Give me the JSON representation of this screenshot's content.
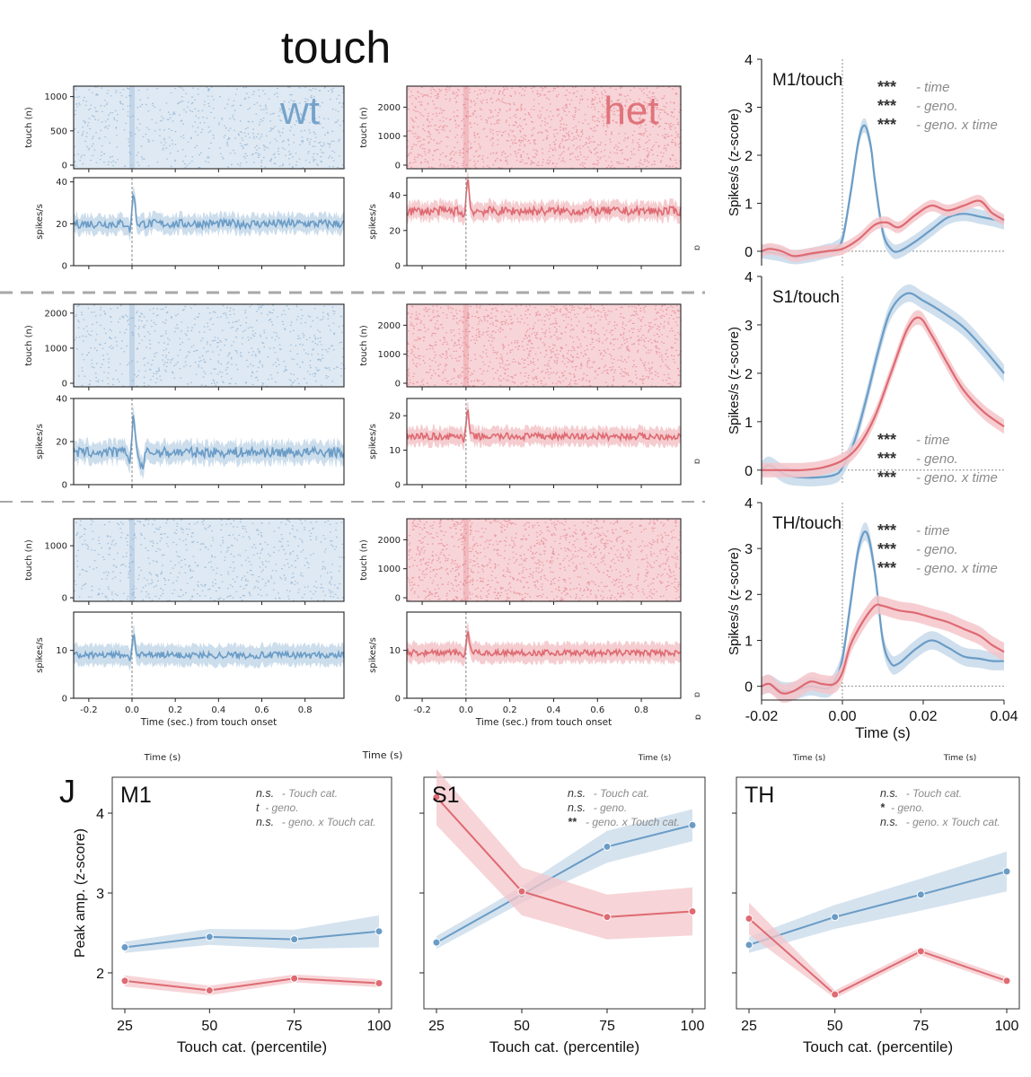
{
  "figure": {
    "title": "touch",
    "panel_letter": "J",
    "wt_label": "wt",
    "het_label": "het",
    "stray_time_labels": [
      "Time (s)",
      "Time (s)",
      "Time (s)",
      "Time (s)",
      "Time (s)"
    ],
    "stray_marks": [
      "ɒ",
      "ɒ",
      "ɒ",
      "ɒ"
    ]
  },
  "colors": {
    "wt": "#6a9cc6",
    "het": "#de6a72",
    "wt_band": "#c7d9ea",
    "het_band": "#f4c6ca",
    "wt_raster_bg": "#dfe9f3",
    "het_raster_bg": "#f7d4d8",
    "stats_gray": "#8a8a8a",
    "dash": "#a8a8a8"
  },
  "chart_data": [
    {
      "id": "raster_psth_grid",
      "type": "line",
      "title": "touch",
      "xlabel": "Time (sec.) from touch onset",
      "xticks": [
        "-0.2",
        "0.0",
        "0.2",
        "0.4",
        "0.6",
        "0.8"
      ],
      "xlim": [
        -0.27,
        0.98
      ],
      "rows": [
        {
          "region": "M1",
          "raster": {
            "ylabel": "touch (n)",
            "wt_yticks": [
              "0",
              "500",
              "1000"
            ],
            "wt_ylim": [
              0,
              1100
            ],
            "het_yticks": [
              "0",
              "1000",
              "2000"
            ],
            "het_ylim": [
              0,
              2600
            ]
          },
          "psth": {
            "ylabel": "spikes/s",
            "wt_yticks": [
              "0",
              "20",
              "40"
            ],
            "wt_ylim": [
              0,
              42
            ],
            "het_yticks": [
              "0",
              "20",
              "40"
            ],
            "het_ylim": [
              0,
              50
            ],
            "wt_baseline": 20,
            "wt_peak": 35,
            "het_baseline": 31,
            "het_peak": 49
          }
        },
        {
          "region": "S1",
          "raster": {
            "ylabel": "touch (n)",
            "wt_yticks": [
              "0",
              "1000",
              "2000"
            ],
            "wt_ylim": [
              0,
              2150
            ],
            "het_yticks": [
              "0",
              "1000",
              "2000"
            ],
            "het_ylim": [
              0,
              2600
            ]
          },
          "psth": {
            "ylabel": "spikes/s",
            "wt_yticks": [
              "0",
              "20",
              "40"
            ],
            "wt_ylim": [
              0,
              40
            ],
            "het_yticks": [
              "0",
              "10",
              "20"
            ],
            "het_ylim": [
              0,
              25
            ],
            "wt_baseline": 15,
            "wt_peak": 32,
            "het_baseline": 14,
            "het_peak": 21
          }
        },
        {
          "region": "TH",
          "raster": {
            "ylabel": "touch (n)",
            "wt_yticks": [
              "0",
              "1000"
            ],
            "wt_ylim": [
              0,
              1450
            ],
            "het_yticks": [
              "0",
              "1000",
              "2000"
            ],
            "het_ylim": [
              0,
              2600
            ]
          },
          "psth": {
            "ylabel": "spikes/s",
            "wt_yticks": [
              "0",
              "10"
            ],
            "wt_ylim": [
              0,
              18
            ],
            "het_yticks": [
              "0",
              "10"
            ],
            "het_ylim": [
              0,
              18
            ],
            "wt_baseline": 9,
            "wt_peak": 14,
            "het_baseline": 9.5,
            "het_peak": 14
          }
        }
      ]
    },
    {
      "id": "zscore_time_panels",
      "type": "line",
      "xlabel": "Time (s)",
      "ylabel": "Spikes/s (z-score)",
      "xlim": [
        -0.02,
        0.04
      ],
      "xticks": [
        "-0.02",
        "0.00",
        "0.02",
        "0.04"
      ],
      "ylim": [
        -0.3,
        4
      ],
      "yticks": [
        "0",
        "1",
        "2",
        "3",
        "4"
      ],
      "panels": [
        {
          "title": "M1/touch",
          "stats": [
            {
              "stars": "***",
              "label": "- time"
            },
            {
              "stars": "***",
              "label": "- geno."
            },
            {
              "stars": "***",
              "label": "- geno. x time"
            }
          ],
          "stats_position": "top-right",
          "series": [
            {
              "name": "wt",
              "x": [
                -0.02,
                -0.016,
                -0.012,
                -0.008,
                -0.004,
                -0.002,
                0.0,
                0.002,
                0.004,
                0.0055,
                0.007,
                0.008,
                0.01,
                0.012,
                0.014,
                0.018,
                0.022,
                0.026,
                0.03,
                0.034,
                0.038,
                0.04
              ],
              "y": [
                0.0,
                -0.05,
                -0.12,
                -0.08,
                0.0,
                0.05,
                0.25,
                1.2,
                2.3,
                2.62,
                2.2,
                1.5,
                0.4,
                0.05,
                0.0,
                0.2,
                0.45,
                0.7,
                0.78,
                0.72,
                0.65,
                0.6
              ],
              "err": 0.15
            },
            {
              "name": "het",
              "x": [
                -0.02,
                -0.018,
                -0.015,
                -0.012,
                -0.008,
                -0.004,
                0.0,
                0.004,
                0.008,
                0.011,
                0.014,
                0.018,
                0.022,
                0.026,
                0.03,
                0.034,
                0.037,
                0.04
              ],
              "y": [
                0.0,
                0.05,
                0.0,
                -0.1,
                -0.05,
                0.0,
                0.05,
                0.25,
                0.55,
                0.6,
                0.5,
                0.75,
                0.95,
                0.85,
                0.95,
                1.05,
                0.8,
                0.65
              ],
              "err": 0.12
            }
          ]
        },
        {
          "title": "S1/touch",
          "stats": [
            {
              "stars": "***",
              "label": "- time"
            },
            {
              "stars": "***",
              "label": "- geno."
            },
            {
              "stars": "***",
              "label": "- geno. x time"
            }
          ],
          "stats_position": "bottom-right",
          "series": [
            {
              "name": "wt",
              "x": [
                -0.02,
                -0.018,
                -0.014,
                -0.01,
                -0.006,
                -0.002,
                0.0,
                0.003,
                0.006,
                0.009,
                0.012,
                0.016,
                0.02,
                0.025,
                0.03,
                0.035,
                0.04
              ],
              "y": [
                0.0,
                0.1,
                -0.1,
                -0.15,
                -0.15,
                -0.1,
                0.05,
                0.6,
                1.5,
                2.5,
                3.3,
                3.65,
                3.5,
                3.25,
                2.95,
                2.5,
                2.0
              ],
              "err": 0.18
            },
            {
              "name": "het",
              "x": [
                -0.02,
                -0.015,
                -0.01,
                -0.005,
                0.0,
                0.004,
                0.008,
                0.012,
                0.016,
                0.019,
                0.022,
                0.026,
                0.03,
                0.035,
                0.04
              ],
              "y": [
                0.0,
                0.0,
                0.0,
                0.05,
                0.2,
                0.5,
                1.1,
                2.0,
                2.9,
                3.15,
                2.8,
                2.2,
                1.65,
                1.2,
                0.9
              ],
              "err": 0.15
            }
          ]
        },
        {
          "title": "TH/touch",
          "stats": [
            {
              "stars": "***",
              "label": "- time"
            },
            {
              "stars": "***",
              "label": "- geno."
            },
            {
              "stars": "***",
              "label": "- geno. x time"
            }
          ],
          "stats_position": "top-right",
          "series": [
            {
              "name": "wt",
              "x": [
                -0.02,
                -0.018,
                -0.015,
                -0.012,
                -0.008,
                -0.004,
                -0.002,
                0.0,
                0.002,
                0.004,
                0.006,
                0.008,
                0.01,
                0.012,
                0.014,
                0.018,
                0.022,
                0.026,
                0.03,
                0.034,
                0.037,
                0.04
              ],
              "y": [
                0.0,
                0.05,
                -0.1,
                -0.1,
                0.0,
                -0.05,
                0.1,
                0.6,
                1.8,
                3.0,
                3.35,
                2.5,
                1.0,
                0.5,
                0.5,
                0.8,
                1.0,
                0.85,
                0.65,
                0.6,
                0.55,
                0.55
              ],
              "err": 0.2
            },
            {
              "name": "het",
              "x": [
                -0.02,
                -0.018,
                -0.015,
                -0.012,
                -0.008,
                -0.005,
                -0.002,
                0.0,
                0.002,
                0.005,
                0.008,
                0.01,
                0.014,
                0.018,
                0.022,
                0.026,
                0.03,
                0.034,
                0.037,
                0.04
              ],
              "y": [
                0.0,
                0.05,
                -0.15,
                -0.1,
                0.1,
                0.05,
                0.05,
                0.3,
                0.9,
                1.4,
                1.75,
                1.75,
                1.65,
                1.6,
                1.5,
                1.4,
                1.25,
                1.1,
                0.9,
                0.75
              ],
              "err": 0.2
            }
          ]
        }
      ]
    },
    {
      "id": "peak_amp_panels",
      "type": "line",
      "xlabel": "Touch cat. (percentile)",
      "ylabel": "Peak amp. (z-score)",
      "categories": [
        "25",
        "50",
        "75",
        "100"
      ],
      "ylim": [
        1.55,
        4.45
      ],
      "yticks": [
        "2",
        "3",
        "4"
      ],
      "panels": [
        {
          "title": "M1",
          "stats": [
            {
              "mark": "n.s.",
              "label": "- Touch cat."
            },
            {
              "mark": "t",
              "label": "- geno."
            },
            {
              "mark": "n.s.",
              "label": "- geno. x Touch cat."
            }
          ],
          "series": [
            {
              "name": "wt",
              "values": [
                2.32,
                2.45,
                2.42,
                2.52
              ],
              "err": [
                0.07,
                0.1,
                0.12,
                0.2
              ]
            },
            {
              "name": "het",
              "values": [
                1.9,
                1.78,
                1.93,
                1.87
              ],
              "err": [
                0.07,
                0.06,
                0.05,
                0.05
              ]
            }
          ]
        },
        {
          "title": "S1",
          "stats": [
            {
              "mark": "n.s.",
              "label": "- Touch cat."
            },
            {
              "mark": "n.s.",
              "label": "- geno."
            },
            {
              "mark": "**",
              "label": "- geno. x Touch cat."
            }
          ],
          "series": [
            {
              "name": "wt",
              "values": [
                2.38,
                2.98,
                3.58,
                3.85
              ],
              "err": [
                0.08,
                0.1,
                0.2,
                0.2
              ]
            },
            {
              "name": "het",
              "values": [
                4.2,
                3.02,
                2.7,
                2.77
              ],
              "err": [
                0.35,
                0.3,
                0.28,
                0.3
              ]
            }
          ]
        },
        {
          "title": "TH",
          "stats": [
            {
              "mark": "n.s.",
              "label": "- Touch cat."
            },
            {
              "mark": "*",
              "label": "- geno."
            },
            {
              "mark": "n.s.",
              "label": "- geno. x Touch cat."
            }
          ],
          "series": [
            {
              "name": "wt",
              "values": [
                2.35,
                2.7,
                2.98,
                3.27
              ],
              "err": [
                0.1,
                0.15,
                0.2,
                0.25
              ]
            },
            {
              "name": "het",
              "values": [
                2.68,
                1.73,
                2.27,
                1.9
              ],
              "err": [
                0.2,
                0.05,
                0.05,
                0.05
              ]
            }
          ]
        }
      ]
    }
  ]
}
